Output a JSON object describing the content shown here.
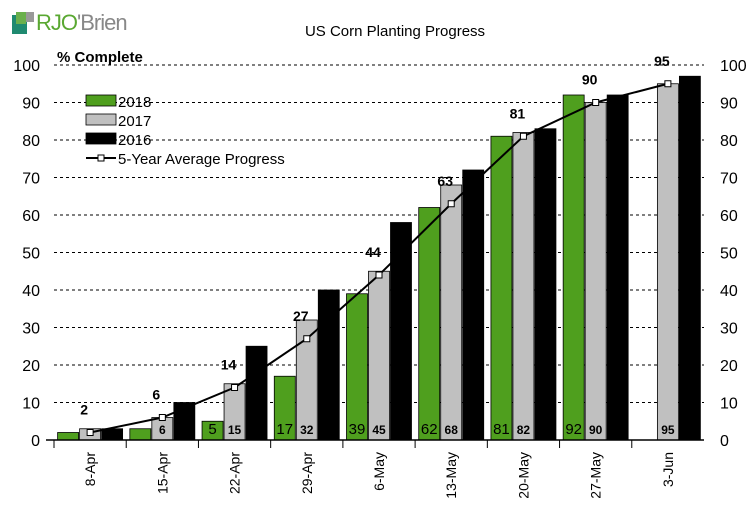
{
  "logo": {
    "brand_a": "RJO",
    "brand_b": "'Brien"
  },
  "chart_data": {
    "type": "bar",
    "title": "US Corn Planting Progress",
    "ylabel": "% Complete",
    "xlabel": "",
    "ylim": [
      0,
      100
    ],
    "yticks": [
      0,
      10,
      20,
      30,
      40,
      50,
      60,
      70,
      80,
      90,
      100
    ],
    "categories": [
      "8-Apr",
      "15-Apr",
      "22-Apr",
      "29-Apr",
      "6-May",
      "13-May",
      "20-May",
      "27-May",
      "3-Jun"
    ],
    "series": [
      {
        "name": "2018",
        "type": "bar",
        "color": "#4f9f1e",
        "values": [
          2,
          3,
          5,
          17,
          39,
          62,
          81,
          92,
          null
        ]
      },
      {
        "name": "2017",
        "type": "bar",
        "color": "#c0c0c0",
        "values": [
          3,
          6,
          15,
          32,
          45,
          68,
          82,
          90,
          95
        ]
      },
      {
        "name": "2016",
        "type": "bar",
        "color": "#000000",
        "values": [
          3,
          10,
          25,
          40,
          58,
          72,
          83,
          92,
          97
        ]
      },
      {
        "name": "5-Year Average Progress",
        "type": "line",
        "color": "#000000",
        "values": [
          2,
          6,
          14,
          27,
          44,
          63,
          81,
          90,
          95
        ]
      }
    ],
    "grid": true,
    "legend": "top-left"
  }
}
